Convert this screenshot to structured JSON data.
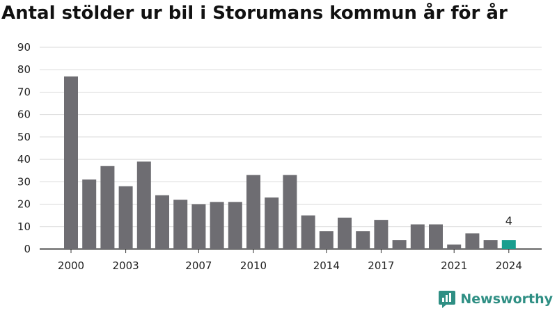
{
  "title": "Antal stölder ur bil i Storumans kommun år för år",
  "brand": {
    "name": "Newsworthy",
    "color": "#2f8f84",
    "icon": "newsworthy-logo-icon"
  },
  "colors": {
    "bar": "#6e6d72",
    "highlight": "#1a9e8f",
    "grid": "#d9d9d9",
    "axis": "#333333"
  },
  "chart_data": {
    "type": "bar",
    "title": "Antal stölder ur bil i Storumans kommun år för år",
    "xlabel": "",
    "ylabel": "",
    "x": [
      2000,
      2001,
      2002,
      2003,
      2004,
      2005,
      2006,
      2007,
      2008,
      2009,
      2010,
      2011,
      2012,
      2013,
      2014,
      2015,
      2016,
      2017,
      2018,
      2019,
      2020,
      2021,
      2022,
      2023,
      2024
    ],
    "values": [
      77,
      31,
      37,
      28,
      39,
      24,
      22,
      20,
      21,
      21,
      33,
      23,
      33,
      15,
      8,
      14,
      8,
      13,
      4,
      11,
      11,
      2,
      7,
      4,
      4
    ],
    "highlight_index": 24,
    "highlight_label": "4",
    "ylim": [
      0,
      90
    ],
    "yticks": [
      0,
      10,
      20,
      30,
      40,
      50,
      60,
      70,
      80,
      90
    ],
    "xticks": [
      2000,
      2003,
      2007,
      2010,
      2014,
      2017,
      2021,
      2024
    ],
    "grid": true,
    "legend": "none"
  }
}
